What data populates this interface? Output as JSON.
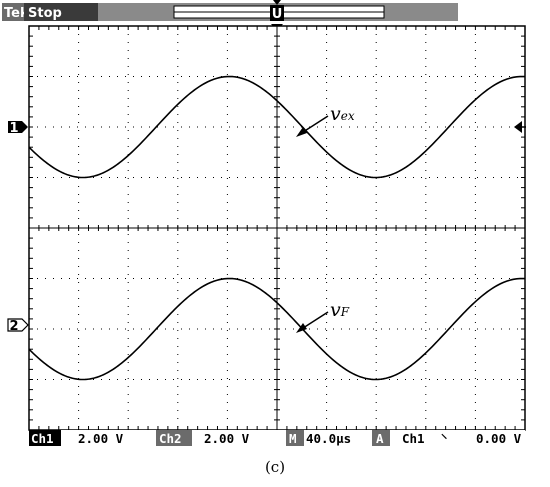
{
  "header": {
    "brand": "Tek",
    "run_state": "Stop",
    "trigger_position_marker": "U",
    "trigger_marker": "T"
  },
  "channel_markers": {
    "ch1": "1",
    "ch2": "2"
  },
  "annotations": {
    "ch1": {
      "main": "v",
      "sub": "ex"
    },
    "ch2": {
      "main": "v",
      "sub": "F"
    }
  },
  "status_bar": {
    "ch1_label": "Ch1",
    "ch1_scale": "2.00 V",
    "ch2_label": "Ch2",
    "ch2_scale": "2.00 V",
    "timebase_label": "M",
    "timebase_value": "40.0µs",
    "trigger_mode": "A",
    "trigger_source": "Ch1",
    "trigger_slope_symbol": "⸌",
    "trigger_level": "0.00 V"
  },
  "caption": "(c)",
  "colors": {
    "trace": "#000000",
    "grid": "#000000",
    "status_bg": "#000000",
    "status_fg": "#ffffff"
  },
  "chart_data": {
    "type": "line",
    "x_divisions": 10,
    "y_divisions": 8,
    "xlim": [
      0,
      10
    ],
    "ylim": [
      -4,
      4
    ],
    "series": [
      {
        "offset_div": 2,
        "amplitude_div": 1,
        "phase_deg": 203.6,
        "period_div": 5.9,
        "x_start_div": 0,
        "x_end_div": 10
      },
      {
        "offset_div": -2,
        "amplitude_div": 1,
        "phase_deg": 203.6,
        "period_div": 5.9,
        "x_start_div": 0,
        "x_end_div": 10
      }
    ]
  }
}
